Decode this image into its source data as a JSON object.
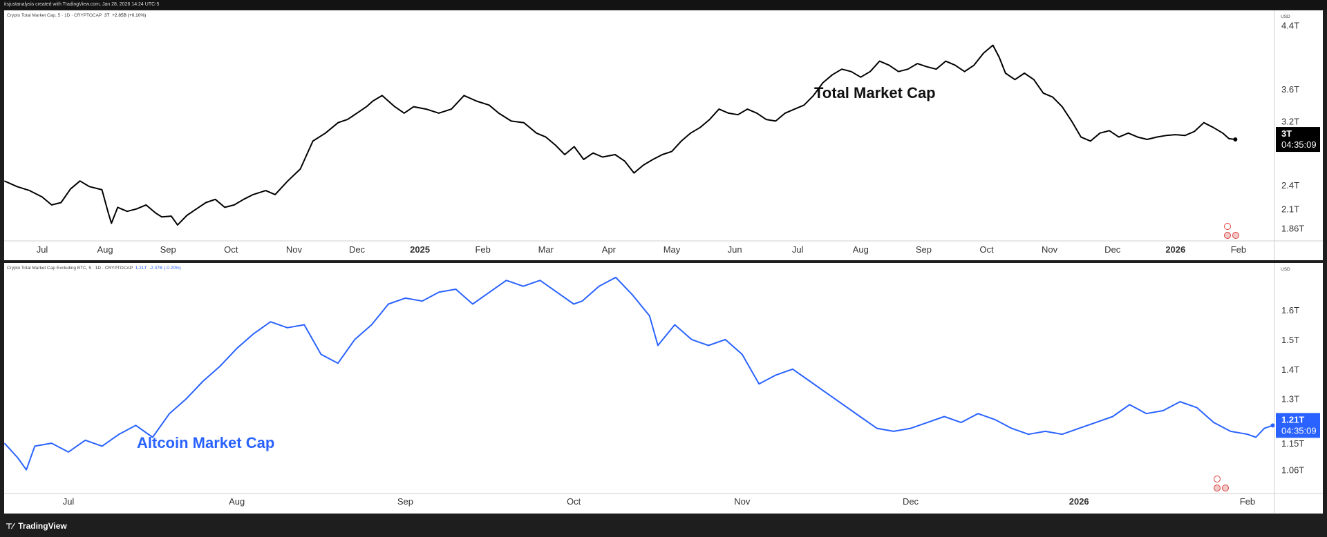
{
  "header": {
    "text": "itsjustanalysis created with TradingView.com, Jan 28, 2026 14:24 UTC-5"
  },
  "footer": {
    "brand": "TradingView",
    "logo_icon": "tradingview-logo-icon"
  },
  "chart_data": [
    {
      "type": "line",
      "title": "Total Market Cap",
      "legend": {
        "symbol": "Crypto Total Market Cap, 5 · 1D · CRYPTOCAP",
        "value": "3T",
        "change": "+2.85B (+0.10%)"
      },
      "currency": "USD",
      "color": "#000000",
      "y_ticks": [
        "1.86T",
        "2.1T",
        "2.4T",
        "3.2T",
        "3.6T",
        "4.4T"
      ],
      "y_tick_values": [
        1.86,
        2.1,
        2.4,
        3.2,
        3.6,
        4.4
      ],
      "ylim": [
        1.7,
        4.5
      ],
      "x_ticks": [
        "Jul",
        "Aug",
        "Sep",
        "Oct",
        "Nov",
        "Dec",
        "2025",
        "Feb",
        "Mar",
        "Apr",
        "May",
        "Jun",
        "Jul",
        "Aug",
        "Sep",
        "Oct",
        "Nov",
        "Dec",
        "2026",
        "Feb"
      ],
      "x_tick_pos": [
        0,
        1,
        2,
        3,
        4,
        5,
        6,
        7,
        8,
        9,
        10,
        11,
        12,
        13,
        14,
        15,
        16,
        17,
        18,
        19
      ],
      "last_label": "3T",
      "countdown": "04:35:09",
      "points": [
        [
          -0.6,
          2.45
        ],
        [
          -0.4,
          2.38
        ],
        [
          -0.2,
          2.33
        ],
        [
          0.0,
          2.25
        ],
        [
          0.15,
          2.15
        ],
        [
          0.3,
          2.18
        ],
        [
          0.45,
          2.35
        ],
        [
          0.6,
          2.45
        ],
        [
          0.75,
          2.38
        ],
        [
          0.95,
          2.34
        ],
        [
          1.05,
          2.05
        ],
        [
          1.1,
          1.92
        ],
        [
          1.2,
          2.12
        ],
        [
          1.35,
          2.07
        ],
        [
          1.5,
          2.1
        ],
        [
          1.65,
          2.15
        ],
        [
          1.8,
          2.05
        ],
        [
          1.9,
          2.0
        ],
        [
          2.05,
          2.01
        ],
        [
          2.15,
          1.9
        ],
        [
          2.3,
          2.02
        ],
        [
          2.45,
          2.1
        ],
        [
          2.6,
          2.18
        ],
        [
          2.75,
          2.22
        ],
        [
          2.9,
          2.12
        ],
        [
          3.05,
          2.15
        ],
        [
          3.2,
          2.22
        ],
        [
          3.35,
          2.28
        ],
        [
          3.55,
          2.33
        ],
        [
          3.7,
          2.28
        ],
        [
          3.9,
          2.45
        ],
        [
          4.1,
          2.6
        ],
        [
          4.3,
          2.95
        ],
        [
          4.5,
          3.05
        ],
        [
          4.7,
          3.18
        ],
        [
          4.85,
          3.22
        ],
        [
          5.0,
          3.3
        ],
        [
          5.15,
          3.38
        ],
        [
          5.25,
          3.45
        ],
        [
          5.4,
          3.52
        ],
        [
          5.5,
          3.45
        ],
        [
          5.6,
          3.38
        ],
        [
          5.75,
          3.3
        ],
        [
          5.9,
          3.38
        ],
        [
          6.1,
          3.35
        ],
        [
          6.3,
          3.3
        ],
        [
          6.5,
          3.35
        ],
        [
          6.7,
          3.52
        ],
        [
          6.9,
          3.45
        ],
        [
          7.1,
          3.4
        ],
        [
          7.25,
          3.3
        ],
        [
          7.45,
          3.2
        ],
        [
          7.65,
          3.18
        ],
        [
          7.85,
          3.05
        ],
        [
          8.0,
          3.0
        ],
        [
          8.15,
          2.9
        ],
        [
          8.3,
          2.78
        ],
        [
          8.45,
          2.88
        ],
        [
          8.6,
          2.72
        ],
        [
          8.75,
          2.8
        ],
        [
          8.9,
          2.75
        ],
        [
          9.1,
          2.78
        ],
        [
          9.25,
          2.7
        ],
        [
          9.4,
          2.55
        ],
        [
          9.55,
          2.65
        ],
        [
          9.7,
          2.72
        ],
        [
          9.85,
          2.78
        ],
        [
          10.0,
          2.82
        ],
        [
          10.15,
          2.95
        ],
        [
          10.3,
          3.05
        ],
        [
          10.45,
          3.12
        ],
        [
          10.6,
          3.22
        ],
        [
          10.75,
          3.35
        ],
        [
          10.9,
          3.3
        ],
        [
          11.05,
          3.28
        ],
        [
          11.2,
          3.35
        ],
        [
          11.35,
          3.3
        ],
        [
          11.5,
          3.22
        ],
        [
          11.65,
          3.2
        ],
        [
          11.8,
          3.3
        ],
        [
          11.95,
          3.35
        ],
        [
          12.1,
          3.4
        ],
        [
          12.25,
          3.52
        ],
        [
          12.4,
          3.68
        ],
        [
          12.55,
          3.78
        ],
        [
          12.7,
          3.85
        ],
        [
          12.85,
          3.82
        ],
        [
          13.0,
          3.75
        ],
        [
          13.15,
          3.82
        ],
        [
          13.3,
          3.95
        ],
        [
          13.45,
          3.9
        ],
        [
          13.6,
          3.82
        ],
        [
          13.75,
          3.85
        ],
        [
          13.9,
          3.92
        ],
        [
          14.05,
          3.88
        ],
        [
          14.2,
          3.85
        ],
        [
          14.35,
          3.95
        ],
        [
          14.5,
          3.9
        ],
        [
          14.65,
          3.82
        ],
        [
          14.8,
          3.9
        ],
        [
          14.95,
          4.05
        ],
        [
          15.1,
          4.15
        ],
        [
          15.2,
          4.0
        ],
        [
          15.3,
          3.8
        ],
        [
          15.45,
          3.72
        ],
        [
          15.6,
          3.8
        ],
        [
          15.75,
          3.72
        ],
        [
          15.9,
          3.55
        ],
        [
          16.05,
          3.5
        ],
        [
          16.2,
          3.38
        ],
        [
          16.35,
          3.2
        ],
        [
          16.5,
          3.0
        ],
        [
          16.65,
          2.95
        ],
        [
          16.8,
          3.05
        ],
        [
          16.95,
          3.08
        ],
        [
          17.1,
          3.0
        ],
        [
          17.25,
          3.05
        ],
        [
          17.4,
          3.0
        ],
        [
          17.55,
          2.97
        ],
        [
          17.7,
          3.0
        ],
        [
          17.85,
          3.02
        ],
        [
          18.0,
          3.03
        ],
        [
          18.15,
          3.02
        ],
        [
          18.3,
          3.07
        ],
        [
          18.45,
          3.18
        ],
        [
          18.6,
          3.12
        ],
        [
          18.75,
          3.05
        ],
        [
          18.85,
          2.98
        ],
        [
          18.95,
          2.97
        ]
      ]
    },
    {
      "type": "line",
      "title": "Altcoin Market Cap",
      "legend": {
        "symbol": "Crypto Total Market Cap Excluding BTC, 5 · 1D · CRYPTOCAP",
        "value": "1.21T",
        "change": "-2.37B (-0.20%)"
      },
      "currency": "USD",
      "color": "#2962ff",
      "y_ticks": [
        "1.06T",
        "1.15T",
        "1.3T",
        "1.4T",
        "1.5T",
        "1.6T"
      ],
      "y_tick_values": [
        1.06,
        1.15,
        1.3,
        1.4,
        1.5,
        1.6
      ],
      "ylim": [
        0.98,
        1.74
      ],
      "x_ticks": [
        "Jul",
        "Aug",
        "Sep",
        "Oct",
        "Nov",
        "Dec",
        "2026",
        "Feb"
      ],
      "x_tick_pos": [
        0,
        1,
        2,
        3,
        4,
        5,
        6,
        7
      ],
      "last_label": "1.21T",
      "countdown": "04:35:09",
      "points": [
        [
          -0.38,
          1.15
        ],
        [
          -0.3,
          1.1
        ],
        [
          -0.25,
          1.06
        ],
        [
          -0.2,
          1.14
        ],
        [
          -0.1,
          1.15
        ],
        [
          0.0,
          1.12
        ],
        [
          0.1,
          1.16
        ],
        [
          0.2,
          1.14
        ],
        [
          0.3,
          1.18
        ],
        [
          0.4,
          1.21
        ],
        [
          0.5,
          1.17
        ],
        [
          0.6,
          1.25
        ],
        [
          0.7,
          1.3
        ],
        [
          0.8,
          1.36
        ],
        [
          0.9,
          1.41
        ],
        [
          1.0,
          1.47
        ],
        [
          1.1,
          1.52
        ],
        [
          1.2,
          1.56
        ],
        [
          1.3,
          1.54
        ],
        [
          1.4,
          1.55
        ],
        [
          1.5,
          1.45
        ],
        [
          1.6,
          1.42
        ],
        [
          1.7,
          1.5
        ],
        [
          1.8,
          1.55
        ],
        [
          1.9,
          1.62
        ],
        [
          2.0,
          1.64
        ],
        [
          2.1,
          1.63
        ],
        [
          2.2,
          1.66
        ],
        [
          2.3,
          1.67
        ],
        [
          2.4,
          1.62
        ],
        [
          2.5,
          1.66
        ],
        [
          2.6,
          1.7
        ],
        [
          2.7,
          1.68
        ],
        [
          2.8,
          1.7
        ],
        [
          2.9,
          1.66
        ],
        [
          3.0,
          1.62
        ],
        [
          3.05,
          1.63
        ],
        [
          3.15,
          1.68
        ],
        [
          3.25,
          1.71
        ],
        [
          3.35,
          1.65
        ],
        [
          3.45,
          1.58
        ],
        [
          3.5,
          1.48
        ],
        [
          3.6,
          1.55
        ],
        [
          3.7,
          1.5
        ],
        [
          3.8,
          1.48
        ],
        [
          3.9,
          1.5
        ],
        [
          4.0,
          1.45
        ],
        [
          4.1,
          1.35
        ],
        [
          4.2,
          1.38
        ],
        [
          4.3,
          1.4
        ],
        [
          4.4,
          1.36
        ],
        [
          4.5,
          1.32
        ],
        [
          4.6,
          1.28
        ],
        [
          4.7,
          1.24
        ],
        [
          4.8,
          1.2
        ],
        [
          4.9,
          1.19
        ],
        [
          5.0,
          1.2
        ],
        [
          5.1,
          1.22
        ],
        [
          5.2,
          1.24
        ],
        [
          5.3,
          1.22
        ],
        [
          5.4,
          1.25
        ],
        [
          5.5,
          1.23
        ],
        [
          5.6,
          1.2
        ],
        [
          5.7,
          1.18
        ],
        [
          5.8,
          1.19
        ],
        [
          5.9,
          1.18
        ],
        [
          6.0,
          1.2
        ],
        [
          6.1,
          1.22
        ],
        [
          6.2,
          1.24
        ],
        [
          6.3,
          1.28
        ],
        [
          6.4,
          1.25
        ],
        [
          6.5,
          1.26
        ],
        [
          6.6,
          1.29
        ],
        [
          6.7,
          1.27
        ],
        [
          6.8,
          1.22
        ],
        [
          6.9,
          1.19
        ],
        [
          7.0,
          1.18
        ],
        [
          7.05,
          1.17
        ],
        [
          7.1,
          1.2
        ],
        [
          7.15,
          1.21
        ]
      ]
    }
  ]
}
